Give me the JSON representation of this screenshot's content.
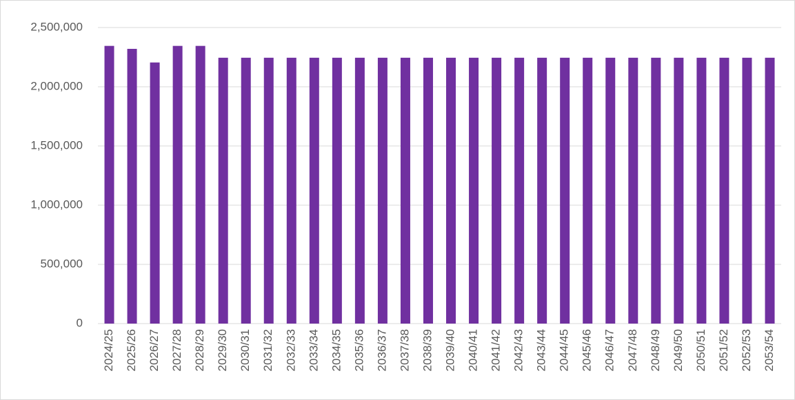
{
  "chart_data": {
    "type": "bar",
    "categories": [
      "2024/25",
      "2025/26",
      "2026/27",
      "2027/28",
      "2028/29",
      "2029/30",
      "2030/31",
      "2031/32",
      "2032/33",
      "2033/34",
      "2034/35",
      "2035/36",
      "2036/37",
      "2037/38",
      "2038/39",
      "2039/40",
      "2040/41",
      "2041/42",
      "2042/43",
      "2043/44",
      "2044/45",
      "2045/46",
      "2046/47",
      "2047/48",
      "2048/49",
      "2049/50",
      "2050/51",
      "2051/52",
      "2052/53",
      "2053/54"
    ],
    "values": [
      2345000,
      2320000,
      2205000,
      2345000,
      2345000,
      2245000,
      2245000,
      2245000,
      2245000,
      2245000,
      2245000,
      2245000,
      2245000,
      2245000,
      2245000,
      2245000,
      2245000,
      2245000,
      2245000,
      2245000,
      2245000,
      2245000,
      2245000,
      2245000,
      2245000,
      2245000,
      2245000,
      2245000,
      2245000,
      2245000
    ],
    "color": "#7030a0",
    "ylim": [
      0,
      2500000
    ],
    "yticks": [
      0,
      {
        "value": 500000,
        "label": "500,000"
      },
      {
        "value": 1000000,
        "label": "1,000,000"
      },
      {
        "value": 1500000,
        "label": "1,500,000"
      },
      {
        "value": 2000000,
        "label": "2,000,000"
      },
      {
        "value": 2500000,
        "label": "2,500,000"
      }
    ],
    "grid": true
  }
}
